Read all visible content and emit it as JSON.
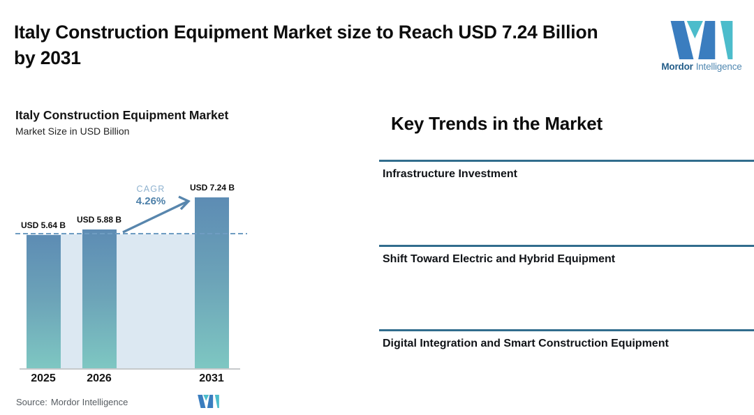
{
  "header": {
    "title_lines": [
      "Italy Construction Equipment Market size to Reach USD 7.24 Billion",
      "by 2031"
    ]
  },
  "brand": {
    "name_primary": "Mordor",
    "name_secondary": "Intelligence"
  },
  "chart": {
    "title": "Italy Construction Equipment Market",
    "subtitle": "Market Size in USD Billion",
    "cagr_label": "CAGR",
    "cagr_value": "4.26%",
    "source_label": "Source:",
    "source_value": "Mordor Intelligence"
  },
  "chart_data": {
    "type": "bar",
    "title": "Italy Construction Equipment Market",
    "ylabel": "Market Size in USD Billion",
    "categories": [
      "2025",
      "2026",
      "2031"
    ],
    "values": [
      5.64,
      5.88,
      7.24
    ],
    "value_labels": [
      "USD 5.64 B",
      "USD 5.88 B",
      "USD 7.24 B"
    ],
    "unit": "USD Billion",
    "cagr_percent": 4.26,
    "reference_dashed_line_value": 5.64,
    "annotations": [
      "CAGR 4.26% arrow pointing from 2026 bar to 2031 bar"
    ],
    "grid": false,
    "legend": false,
    "colors": {
      "bar_gradient_top": "#5d8cb4",
      "bar_gradient_bottom": "#7ec7c2",
      "plot_band": "#dce8f2",
      "dashed_line": "#6f9dc2",
      "arrow_accent": "#5886ad",
      "divider_line": "#316d8d",
      "brand_blue": "#3a7dbf",
      "brand_teal": "#4cbccb"
    }
  },
  "trends": {
    "heading": "Key Trends in the Market",
    "items": [
      {
        "label": "Infrastructure Investment"
      },
      {
        "label": "Shift Toward Electric and Hybrid Equipment"
      },
      {
        "label": "Digital Integration and Smart Construction Equipment"
      }
    ]
  }
}
